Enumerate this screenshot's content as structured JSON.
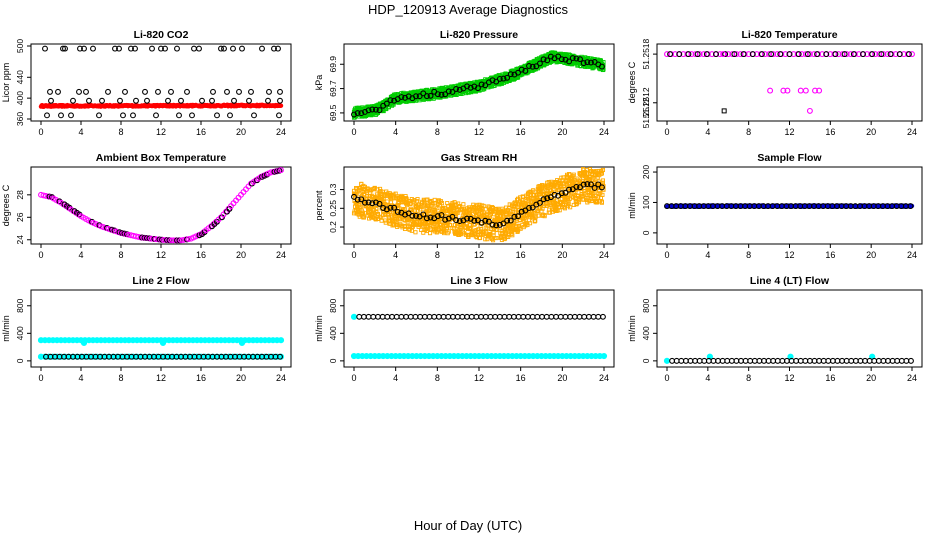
{
  "figure": {
    "title": "HDP_120913  Average Diagnostics",
    "xlabel": "Hour of Day (UTC)"
  },
  "chart_data": [
    {
      "id": "li820-co2",
      "type": "scatter",
      "title": "Li-820 CO2",
      "ylabel": "Licor ppm",
      "xlim": [
        0,
        24
      ],
      "ylim": [
        360,
        500
      ],
      "yticks": [
        360,
        400,
        440,
        500
      ],
      "xticks": [
        0,
        4,
        8,
        12,
        16,
        20,
        24
      ],
      "series": [
        {
          "name": "co2-band",
          "color": "#ff0000",
          "marker": "dense",
          "x_range": [
            0,
            24
          ],
          "y_start": 385,
          "y_end": 386,
          "y_spread": 3
        },
        {
          "name": "co2-spikes",
          "color": "#000000",
          "marker": "open-circle",
          "x": [
            0.4,
            2.2,
            2.4,
            3.9,
            4.3,
            5.2,
            7.4,
            7.8,
            9.0,
            9.4,
            11.1,
            12.0,
            12.4,
            13.6,
            15.3,
            15.8,
            18.0,
            18.3,
            19.2,
            20.1,
            22.1,
            23.3,
            23.7,
            0.9,
            1.7,
            3.8,
            4.5,
            6.7,
            8.4,
            10.4,
            11.7,
            13.0,
            14.6,
            17.2,
            18.6,
            19.8,
            21.0,
            22.8,
            23.9,
            1.0,
            3.2,
            4.8,
            6.1,
            7.9,
            9.5,
            10.6,
            12.7,
            14.0,
            16.1,
            17.1,
            19.3,
            20.8,
            22.7,
            23.9,
            0.6,
            2.0,
            3.0,
            5.8,
            8.2,
            9.2,
            11.5,
            13.8,
            15.1,
            17.6,
            18.9,
            21.3,
            23.8
          ],
          "y": [
            495,
            495,
            495,
            495,
            495,
            495,
            495,
            495,
            495,
            495,
            495,
            495,
            495,
            495,
            495,
            495,
            495,
            495,
            495,
            495,
            495,
            495,
            495,
            412,
            412,
            412,
            412,
            412,
            412,
            412,
            412,
            412,
            412,
            412,
            412,
            412,
            412,
            412,
            412,
            395,
            395,
            395,
            395,
            395,
            395,
            395,
            395,
            395,
            395,
            395,
            395,
            395,
            395,
            395,
            367,
            367,
            367,
            367,
            367,
            367,
            367,
            367,
            367,
            367,
            367,
            367,
            367
          ]
        }
      ]
    },
    {
      "id": "li820-pressure",
      "type": "scatter",
      "title": "Li-820 Pressure",
      "ylabel": "kPa",
      "xlim": [
        0,
        24
      ],
      "ylim": [
        69.45,
        70.05
      ],
      "yticks": [
        69.5,
        69.7,
        69.9
      ],
      "xticks": [
        0,
        4,
        8,
        12,
        16,
        20,
        24
      ],
      "series": [
        {
          "name": "pressure-band",
          "color": "#00cc00",
          "marker": "dense-square",
          "x": [
            0,
            2,
            3,
            4,
            6,
            8,
            12,
            15,
            17,
            19,
            20,
            22,
            24
          ],
          "y": [
            69.5,
            69.52,
            69.56,
            69.62,
            69.64,
            69.66,
            69.72,
            69.8,
            69.88,
            69.96,
            69.95,
            69.92,
            69.89
          ],
          "y_spread": 0.04
        },
        {
          "name": "pressure-mean",
          "color": "#000000",
          "marker": "open-circle",
          "x": [
            0,
            2,
            3,
            4,
            6,
            8,
            12,
            15,
            17,
            19,
            20,
            22,
            24
          ],
          "y": [
            69.5,
            69.52,
            69.56,
            69.62,
            69.64,
            69.66,
            69.72,
            69.8,
            69.88,
            69.96,
            69.95,
            69.92,
            69.89
          ]
        }
      ]
    },
    {
      "id": "li820-temperature",
      "type": "scatter",
      "title": "Li-820 Temperature",
      "ylabel": "degrees C",
      "xlim": [
        0,
        24
      ],
      "ylim": [
        51.251,
        51.2519
      ],
      "yticks": [
        51.2512,
        51.2518
      ],
      "extra_ytick": "51.2512",
      "xticks": [
        0,
        4,
        8,
        12,
        16,
        20,
        24
      ],
      "series": [
        {
          "name": "temp-main",
          "color": "#ff00ff",
          "marker": "open-circle",
          "x_range": [
            0,
            24
          ],
          "y_const": 51.2518
        },
        {
          "name": "temp-main-black",
          "color": "#000000",
          "marker": "open-circle",
          "x_range": [
            0.3,
            23.7
          ],
          "y_const": 51.2518,
          "step": 0.9
        },
        {
          "name": "temp-outliers",
          "color": "#ff00ff",
          "marker": "open-circle",
          "x": [
            10.1,
            11.4,
            11.8,
            13.1,
            13.6,
            14.5,
            14.9,
            14.0,
            5.5
          ],
          "y": [
            51.25135,
            51.25135,
            51.25135,
            51.25135,
            51.25135,
            51.25135,
            51.25135,
            51.2511,
            51.2518
          ]
        },
        {
          "name": "temp-low",
          "color": "#000000",
          "marker": "square",
          "x": [
            5.6
          ],
          "y": [
            51.2511
          ]
        }
      ]
    },
    {
      "id": "ambient-box-temperature",
      "type": "scatter",
      "title": "Ambient Box Temperature",
      "ylabel": "degrees C",
      "xlim": [
        0,
        24
      ],
      "ylim": [
        23.8,
        30.3
      ],
      "yticks": [
        24,
        26,
        28
      ],
      "xticks": [
        0,
        4,
        8,
        12,
        16,
        20,
        24
      ],
      "series": [
        {
          "name": "box-temp",
          "color": "#ff00ff",
          "marker": "open-circle",
          "x": [
            0,
            1,
            2,
            3,
            4,
            5,
            6,
            7,
            8,
            9,
            10,
            11,
            12,
            13,
            14,
            15,
            16,
            17,
            18,
            19,
            20,
            21,
            22,
            23,
            24
          ],
          "y": [
            28.0,
            27.8,
            27.3,
            26.7,
            26.1,
            25.6,
            25.2,
            24.9,
            24.6,
            24.4,
            24.2,
            24.1,
            24.0,
            23.95,
            23.95,
            24.1,
            24.5,
            25.2,
            26.0,
            27.0,
            28.0,
            29.0,
            29.6,
            30.0,
            30.2
          ]
        }
      ]
    },
    {
      "id": "gas-stream-rh",
      "type": "scatter",
      "title": "Gas Stream RH",
      "ylabel": "percent",
      "xlim": [
        0,
        24
      ],
      "ylim": [
        0.16,
        0.355
      ],
      "yticks": [
        0.2,
        0.25,
        0.3
      ],
      "xticks": [
        0,
        4,
        8,
        12,
        16,
        20,
        24
      ],
      "series": [
        {
          "name": "rh-band",
          "color": "#ffaa00",
          "marker": "dense-square",
          "x": [
            0,
            2,
            4,
            6,
            8,
            10,
            12,
            14,
            16,
            18,
            20,
            22,
            24
          ],
          "y": [
            0.275,
            0.262,
            0.245,
            0.23,
            0.228,
            0.22,
            0.215,
            0.205,
            0.235,
            0.27,
            0.29,
            0.31,
            0.31
          ],
          "y_spread": 0.045
        },
        {
          "name": "rh-mean",
          "color": "#000000",
          "marker": "open-circle",
          "x": [
            0,
            2,
            4,
            6,
            8,
            10,
            12,
            14,
            16,
            18,
            20,
            22,
            24
          ],
          "y": [
            0.275,
            0.262,
            0.245,
            0.23,
            0.228,
            0.22,
            0.215,
            0.205,
            0.235,
            0.27,
            0.29,
            0.31,
            0.31
          ]
        }
      ]
    },
    {
      "id": "sample-flow",
      "type": "scatter",
      "title": "Sample Flow",
      "ylabel": "ml/min",
      "xlim": [
        0,
        24
      ],
      "ylim": [
        -30,
        210
      ],
      "yticks": [
        0,
        100,
        200
      ],
      "xticks": [
        0,
        4,
        8,
        12,
        16,
        20,
        24
      ],
      "series": [
        {
          "name": "sample-flow-band",
          "color": "#0000cc",
          "marker": "dense",
          "x_range": [
            0,
            24
          ],
          "y_start": 88,
          "y_end": 88,
          "y_spread": 4
        },
        {
          "name": "sample-flow-mean",
          "color": "#000000",
          "marker": "open-circle",
          "x_range": [
            0,
            24
          ],
          "y_const": 88,
          "step": 0.45
        }
      ]
    },
    {
      "id": "line-2-flow",
      "type": "scatter",
      "title": "Line 2 Flow",
      "ylabel": "ml/min",
      "xlim": [
        0,
        24
      ],
      "ylim": [
        -60,
        1000
      ],
      "yticks": [
        0,
        400,
        800
      ],
      "xticks": [
        0,
        4,
        8,
        12,
        16,
        20,
        24
      ],
      "series": [
        {
          "name": "line2-upper",
          "color": "#00ffff",
          "marker": "filled-circle",
          "x_range": [
            0,
            24
          ],
          "y_const": 300,
          "step": 0.4,
          "dips_x": [
            4.3,
            12.2,
            20.1
          ],
          "dips_y": 260
        },
        {
          "name": "line2-lower",
          "color": "#00ffff",
          "marker": "filled-circle",
          "x_range": [
            0,
            24
          ],
          "y_const": 60,
          "step": 0.4
        },
        {
          "name": "line2-lower-black",
          "color": "#000000",
          "marker": "open-circle",
          "x_range": [
            0.5,
            24
          ],
          "y_const": 60,
          "step": 0.45
        }
      ]
    },
    {
      "id": "line-3-flow",
      "type": "scatter",
      "title": "Line 3 Flow",
      "ylabel": "ml/min",
      "xlim": [
        0,
        24
      ],
      "ylim": [
        -60,
        1000
      ],
      "yticks": [
        0,
        400,
        800
      ],
      "xticks": [
        0,
        4,
        8,
        12,
        16,
        20,
        24
      ],
      "series": [
        {
          "name": "line3-upper-cyan",
          "color": "#00ffff",
          "marker": "filled-circle",
          "x": [
            0
          ],
          "y": [
            640
          ]
        },
        {
          "name": "line3-upper",
          "color": "#000000",
          "marker": "open-circle",
          "x_range": [
            0.5,
            24
          ],
          "y_const": 640,
          "step": 0.45
        },
        {
          "name": "line3-lower",
          "color": "#00ffff",
          "marker": "filled-circle",
          "x_range": [
            0,
            24
          ],
          "y_const": 70,
          "step": 0.4
        }
      ]
    },
    {
      "id": "line-4-lt-flow",
      "type": "scatter",
      "title": "Line 4 (LT) Flow",
      "ylabel": "ml/min",
      "xlim": [
        0,
        24
      ],
      "ylim": [
        -60,
        1000
      ],
      "yticks": [
        0,
        400,
        800
      ],
      "xticks": [
        0,
        4,
        8,
        12,
        16,
        20,
        24
      ],
      "series": [
        {
          "name": "line4-cyan-start",
          "color": "#00ffff",
          "marker": "filled-circle",
          "x": [
            0,
            4.2,
            12.1,
            20.1
          ],
          "y": [
            0,
            60,
            60,
            60
          ]
        },
        {
          "name": "line4-base",
          "color": "#000000",
          "marker": "open-circle",
          "x_range": [
            0.5,
            24
          ],
          "y_const": 0,
          "step": 0.45
        }
      ]
    }
  ]
}
